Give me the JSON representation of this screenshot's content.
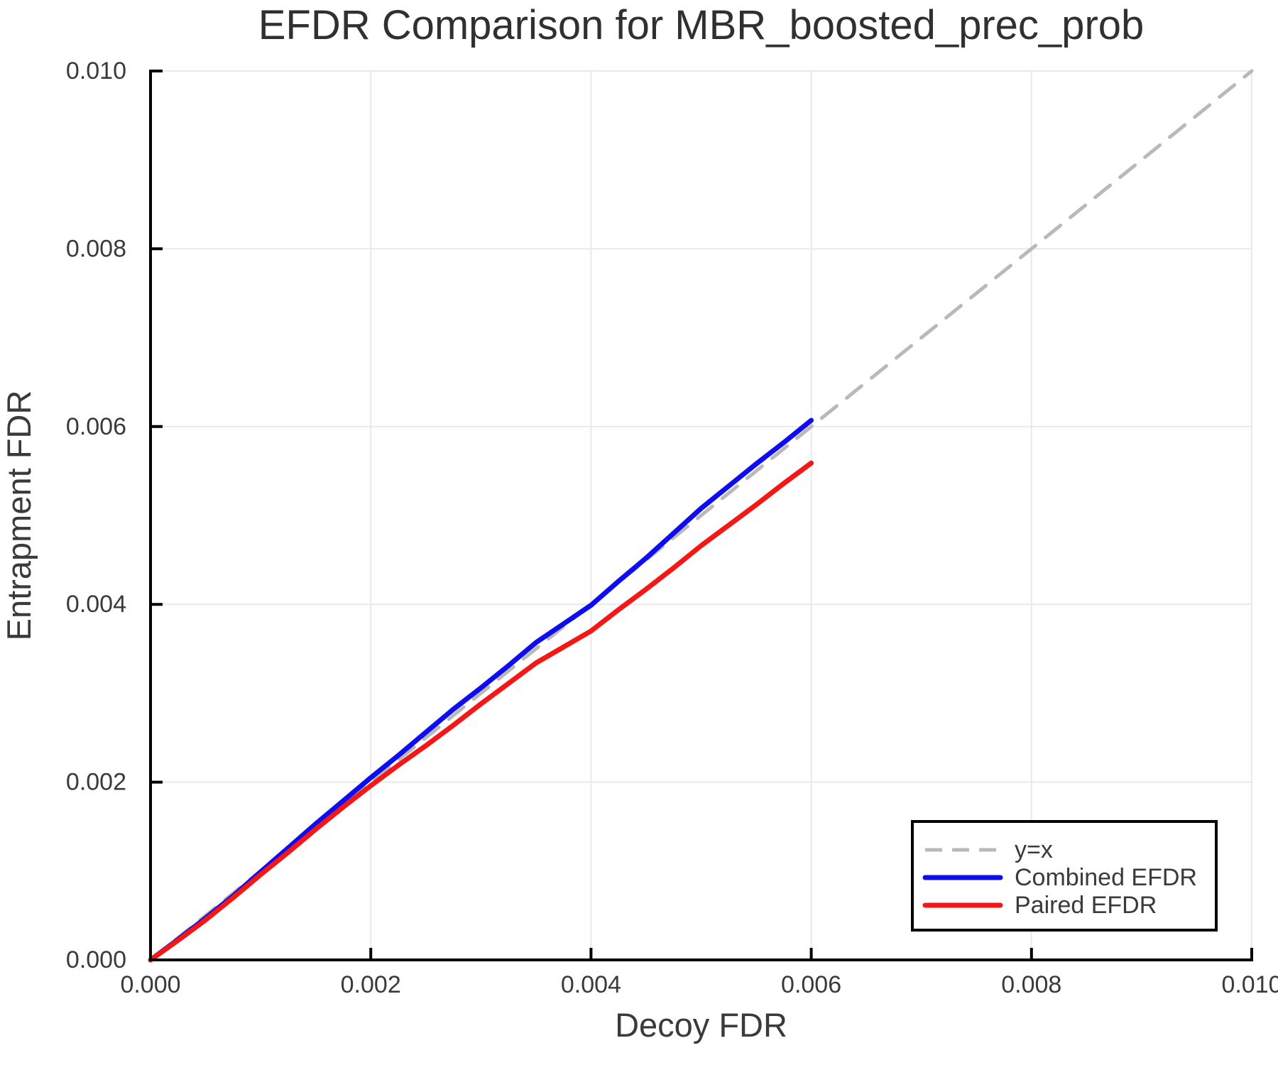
{
  "chart_data": {
    "type": "line",
    "title": "EFDR Comparison for MBR_boosted_prec_prob",
    "xlabel": "Decoy FDR",
    "ylabel": "Entrapment FDR",
    "xlim": [
      0.0,
      0.01
    ],
    "ylim": [
      0.0,
      0.01
    ],
    "xticks": [
      0.0,
      0.002,
      0.004,
      0.006,
      0.008,
      0.01
    ],
    "xtick_labels": [
      "0.000",
      "0.002",
      "0.004",
      "0.006",
      "0.008",
      "0.010"
    ],
    "yticks": [
      0.0,
      0.002,
      0.004,
      0.006,
      0.008,
      0.01
    ],
    "ytick_labels": [
      "0.000",
      "0.002",
      "0.004",
      "0.006",
      "0.008",
      "0.010"
    ],
    "grid": true,
    "legend_position": "bottom-right",
    "colors": {
      "grid": "#e9e9e9",
      "spine": "#000000",
      "text": "#3a3a3a",
      "identity_line": "#b9b9b9",
      "combined": "#0d0df0",
      "paired": "#f51616"
    },
    "series": [
      {
        "name": "y=x",
        "color": "#b9b9b9",
        "dashed": true,
        "points": [
          [
            0.0,
            0.0
          ],
          [
            0.01,
            0.01
          ]
        ]
      },
      {
        "name": "Combined EFDR",
        "color": "#0d0df0",
        "dashed": false,
        "points": [
          [
            0.0,
            0.0
          ],
          [
            0.00025,
            0.00023
          ],
          [
            0.0005,
            0.00047
          ],
          [
            0.00075,
            0.00072
          ],
          [
            0.001,
            0.00099
          ],
          [
            0.00125,
            0.00126
          ],
          [
            0.0015,
            0.00153
          ],
          [
            0.00175,
            0.00179
          ],
          [
            0.002,
            0.00205
          ],
          [
            0.00225,
            0.0023
          ],
          [
            0.0025,
            0.00256
          ],
          [
            0.00275,
            0.00282
          ],
          [
            0.003,
            0.00306
          ],
          [
            0.00325,
            0.00331
          ],
          [
            0.0035,
            0.00357
          ],
          [
            0.00375,
            0.00378
          ],
          [
            0.004,
            0.00399
          ],
          [
            0.00425,
            0.00426
          ],
          [
            0.0045,
            0.00452
          ],
          [
            0.00475,
            0.0048
          ],
          [
            0.005,
            0.00508
          ],
          [
            0.00525,
            0.00533
          ],
          [
            0.0055,
            0.00558
          ],
          [
            0.00575,
            0.00582
          ],
          [
            0.006,
            0.00607
          ]
        ]
      },
      {
        "name": "Paired EFDR",
        "color": "#f51616",
        "dashed": false,
        "points": [
          [
            0.0,
            0.0
          ],
          [
            0.00025,
            0.00022
          ],
          [
            0.0005,
            0.00045
          ],
          [
            0.00075,
            0.0007
          ],
          [
            0.001,
            0.00096
          ],
          [
            0.00125,
            0.00121
          ],
          [
            0.0015,
            0.00147
          ],
          [
            0.00175,
            0.00172
          ],
          [
            0.002,
            0.00196
          ],
          [
            0.00225,
            0.00219
          ],
          [
            0.0025,
            0.00241
          ],
          [
            0.00275,
            0.00264
          ],
          [
            0.003,
            0.00288
          ],
          [
            0.00325,
            0.00311
          ],
          [
            0.0035,
            0.00334
          ],
          [
            0.00375,
            0.00352
          ],
          [
            0.004,
            0.0037
          ],
          [
            0.00425,
            0.00394
          ],
          [
            0.0045,
            0.00417
          ],
          [
            0.00475,
            0.00441
          ],
          [
            0.005,
            0.00466
          ],
          [
            0.00525,
            0.00489
          ],
          [
            0.0055,
            0.00512
          ],
          [
            0.00575,
            0.00536
          ],
          [
            0.006,
            0.00559
          ]
        ]
      }
    ]
  }
}
